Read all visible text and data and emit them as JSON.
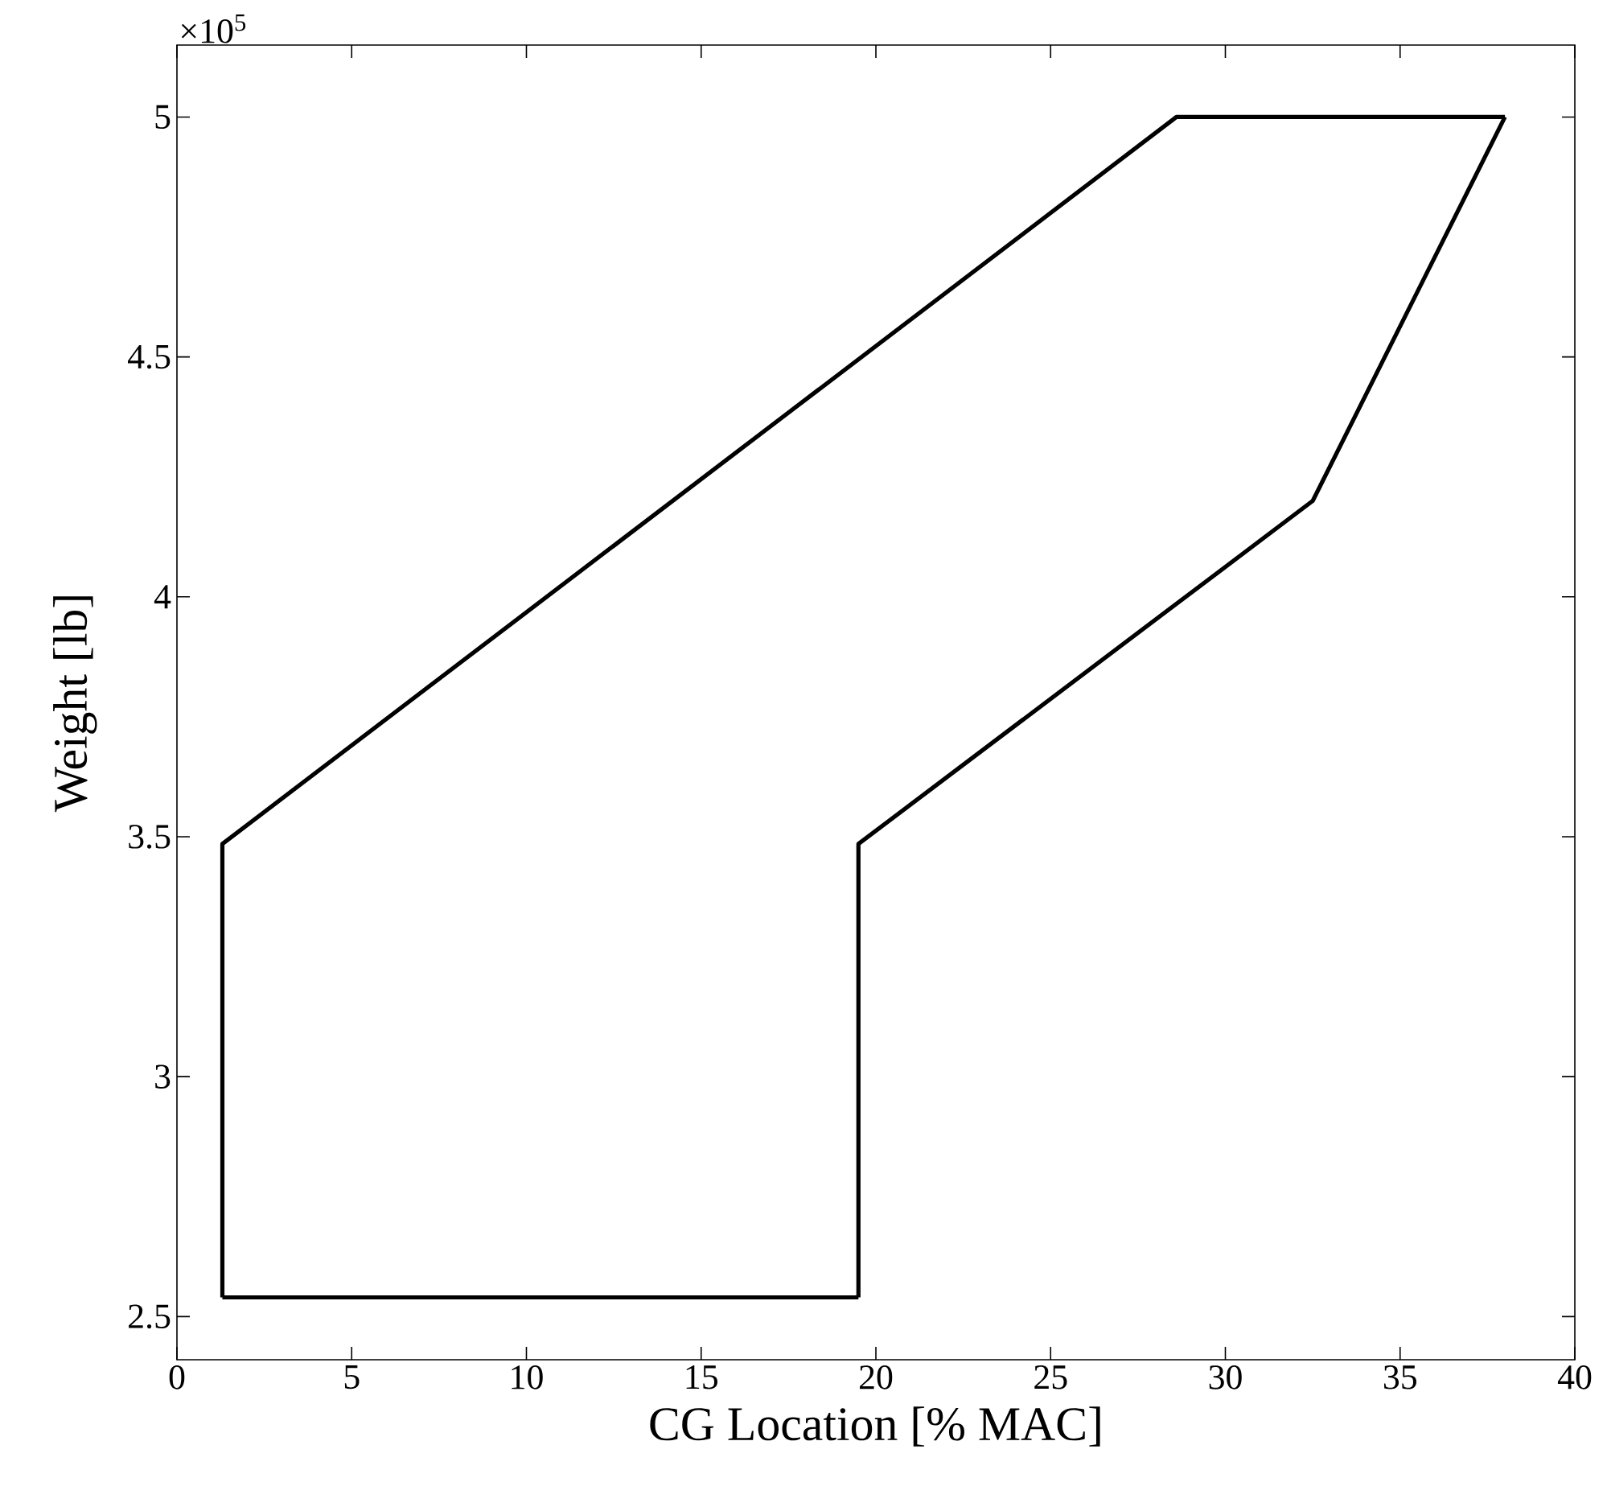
{
  "chart_data": {
    "type": "line",
    "xlabel": "CG Location [% MAC]",
    "ylabel": "Weight [lb]",
    "annotations": [
      "×10$^{5}$"
    ],
    "series": [
      {
        "color": "#000000",
        "x": [
          1.3,
          19.5
        ],
        "values": [
          2.54,
          2.54
        ]
      },
      {
        "color": "#000000",
        "x": [
          19.5,
          19.5,
          32.5,
          38
        ],
        "values": [
          2.54,
          3.485,
          4.2,
          5
        ]
      },
      {
        "color": "#000000",
        "x": [
          1.3,
          1.3,
          28.6,
          38
        ],
        "values": [
          2.54,
          3.485,
          5,
          5
        ]
      }
    ],
    "xlim": [
      0,
      40
    ],
    "xticks": [
      0,
      5,
      10,
      15,
      20,
      25,
      30,
      35,
      40
    ],
    "ylim": [
      2.41,
      5.15
    ],
    "yticks": [
      2.5,
      3,
      3.5,
      4,
      4.5,
      5
    ],
    "grid": false,
    "marker": "none",
    "line_style": "solid"
  }
}
